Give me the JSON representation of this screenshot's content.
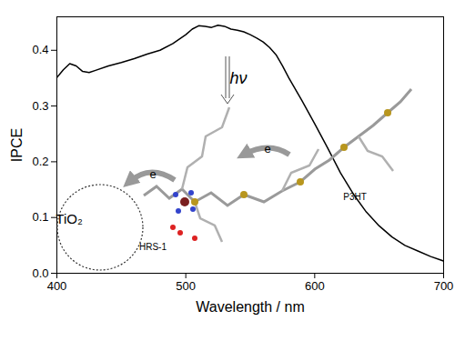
{
  "chart_data": {
    "type": "line",
    "x_label": "Wavelength / nm",
    "y_label": "IPCE",
    "x": [
      400,
      405,
      410,
      415,
      420,
      425,
      430,
      440,
      450,
      460,
      470,
      480,
      490,
      500,
      505,
      510,
      515,
      520,
      525,
      530,
      535,
      540,
      545,
      550,
      555,
      560,
      565,
      570,
      575,
      580,
      590,
      600,
      610,
      620,
      630,
      640,
      650,
      660,
      670,
      680,
      690,
      700
    ],
    "values": [
      0.351,
      0.365,
      0.376,
      0.372,
      0.362,
      0.36,
      0.364,
      0.372,
      0.378,
      0.385,
      0.393,
      0.4,
      0.412,
      0.428,
      0.438,
      0.444,
      0.443,
      0.441,
      0.445,
      0.443,
      0.438,
      0.436,
      0.433,
      0.428,
      0.422,
      0.415,
      0.405,
      0.392,
      0.372,
      0.35,
      0.31,
      0.268,
      0.225,
      0.18,
      0.142,
      0.11,
      0.085,
      0.065,
      0.05,
      0.04,
      0.03,
      0.022
    ],
    "color": "#000000",
    "xlim": [
      400,
      700
    ],
    "xticks": [
      400,
      500,
      600,
      700
    ],
    "ylim": [
      0,
      0.46
    ],
    "yticks": [
      {
        "value": 0,
        "label": "0.0"
      },
      0.1,
      0.2,
      0.3,
      0.4
    ],
    "grid": false,
    "annotations": [
      "hν",
      "e",
      "e",
      "TiO₂",
      "HRS-1",
      "P3HT"
    ]
  }
}
